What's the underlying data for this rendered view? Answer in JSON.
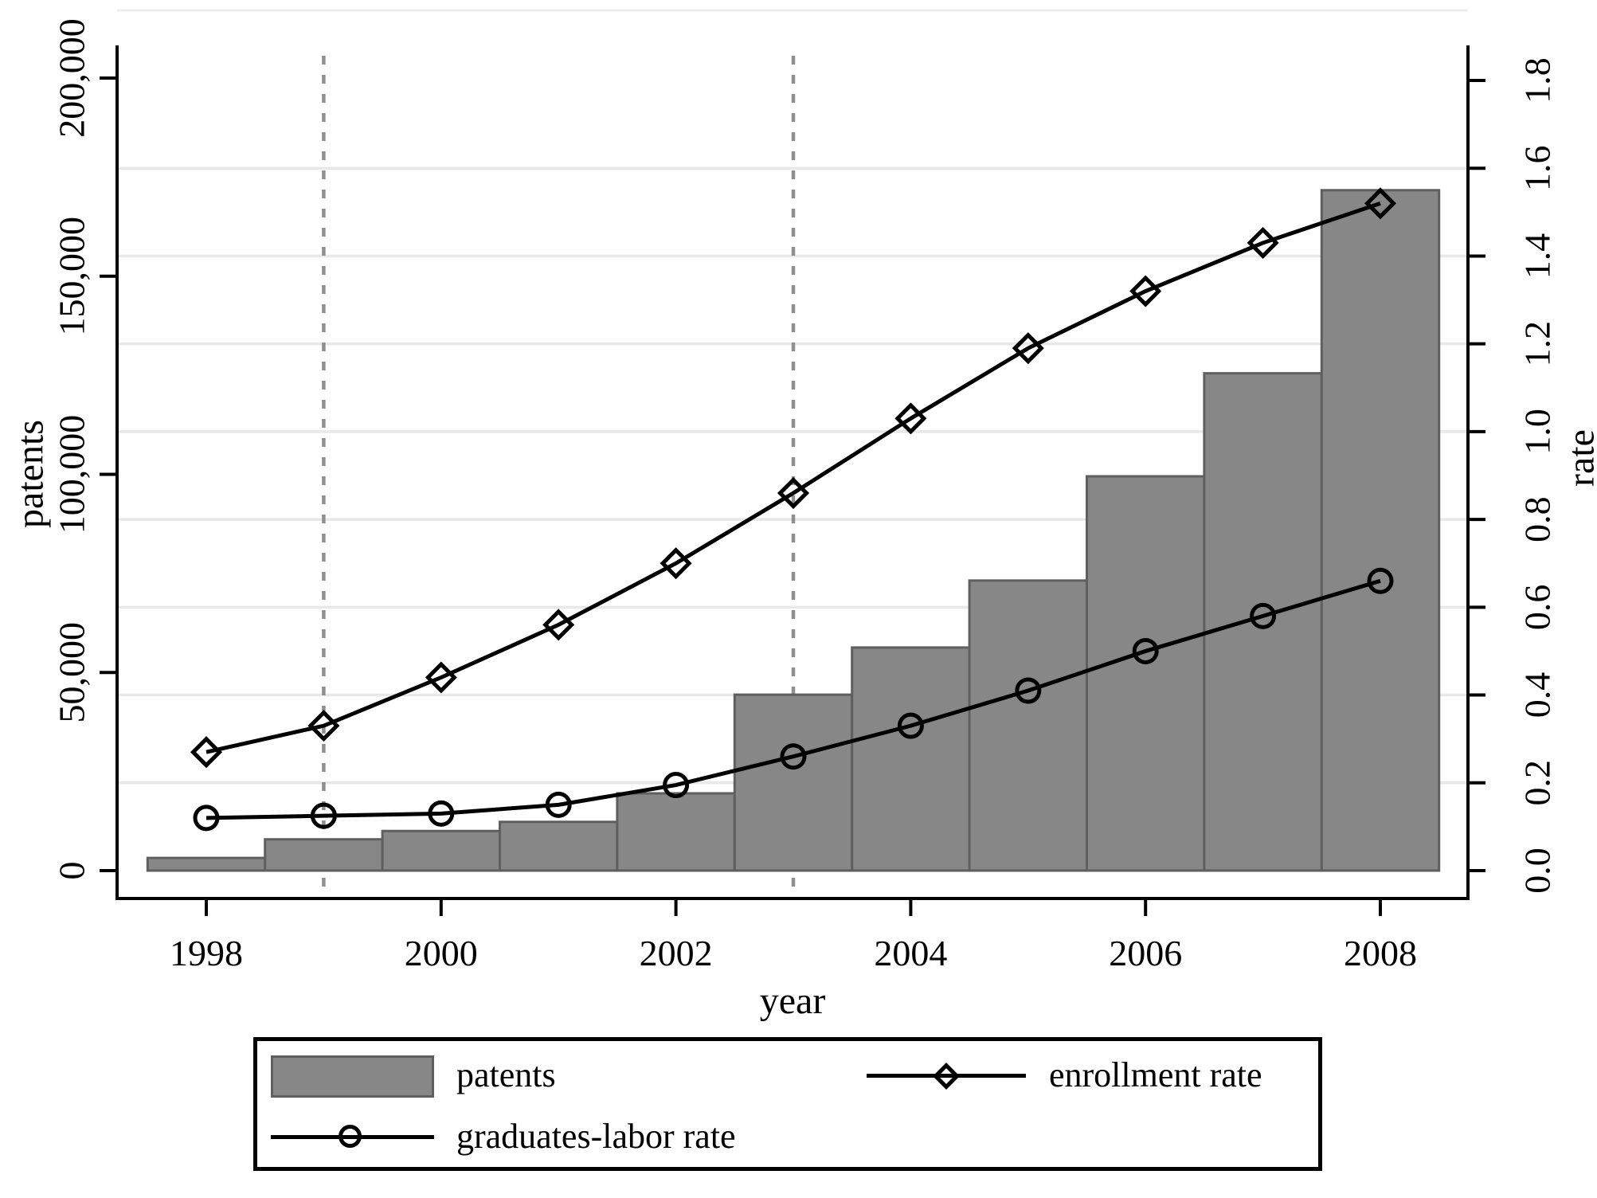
{
  "chart_data": {
    "type": "combo-bar-line",
    "x": [
      1998,
      1999,
      2000,
      2001,
      2002,
      2003,
      2004,
      2005,
      2006,
      2007,
      2008
    ],
    "series": [
      {
        "name": "patents",
        "type": "bar",
        "axis": "left",
        "values": [
          3200,
          7900,
          10000,
          12300,
          19500,
          44400,
          56300,
          73200,
          99500,
          125500,
          171700
        ]
      },
      {
        "name": "enrollment rate",
        "type": "line",
        "marker": "diamond",
        "axis": "right",
        "values": [
          0.27,
          0.33,
          0.44,
          0.56,
          0.7,
          0.86,
          1.03,
          1.19,
          1.32,
          1.43,
          1.52
        ]
      },
      {
        "name": "graduates-labor rate",
        "type": "line",
        "marker": "circle",
        "axis": "right",
        "values": [
          0.12,
          0.125,
          0.13,
          0.15,
          0.195,
          0.26,
          0.33,
          0.41,
          0.5,
          0.58,
          0.66
        ]
      }
    ],
    "reference_lines_x": [
      1999,
      2003
    ],
    "left_axis": {
      "title": "patents",
      "min": 0,
      "max": 200000,
      "tick_values": [
        0,
        50000,
        100000,
        150000,
        200000
      ],
      "tick_labels": [
        "0",
        "50,000",
        "100,000",
        "150,000",
        "200,000"
      ]
    },
    "right_axis": {
      "title": "rate",
      "min": 0.0,
      "max": 1.8,
      "tick_values": [
        0.0,
        0.2,
        0.4,
        0.6,
        0.8,
        1.0,
        1.2,
        1.4,
        1.6,
        1.8
      ],
      "tick_labels": [
        "0.0",
        "0.2",
        "0.4",
        "0.6",
        "0.8",
        "1.0",
        "1.2",
        "1.4",
        "1.6",
        "1.8"
      ],
      "gridline_values": [
        0.2,
        0.4,
        0.6,
        0.8,
        1.0,
        1.2,
        1.4,
        1.6
      ]
    },
    "x_axis": {
      "title": "year",
      "tick_years": [
        1998,
        2000,
        2002,
        2004,
        2006,
        2008
      ]
    },
    "legend_position": "bottom",
    "grid": "horizontal",
    "colors": {
      "bar_fill": "#878787",
      "bar_border": "#5f5f5f",
      "line": "#000000",
      "grid": "#e8e8e8",
      "plot_top_border": "#ececec",
      "reference_line": "#8f8f8f",
      "axis": "#000000",
      "text": "#000000",
      "background": "#ffffff"
    }
  }
}
